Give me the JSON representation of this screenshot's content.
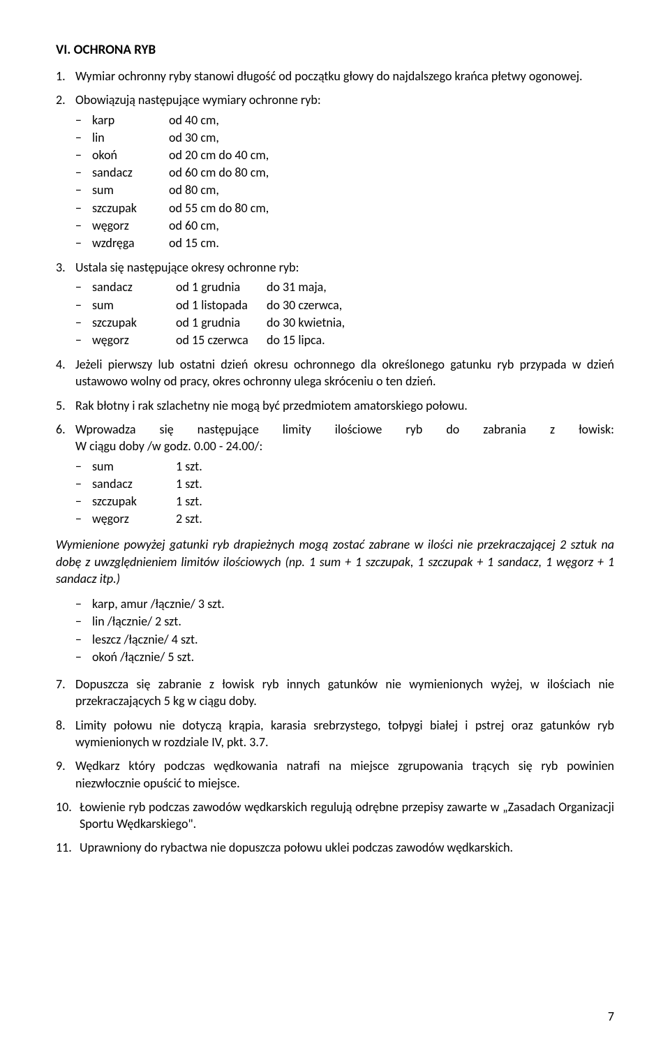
{
  "section_title": "VI. OCHRONA RYB",
  "items": {
    "1": {
      "num": "1.",
      "text": "Wymiar ochronny ryby stanowi długość od początku głowy do najdalszego krańca płetwy ogonowej."
    },
    "2": {
      "num": "2.",
      "text": "Obowiązują następujące wymiary ochronne ryb:",
      "label_width": 110,
      "sub": [
        {
          "label": "karp",
          "val": "od 40 cm,"
        },
        {
          "label": "lin",
          "val": "od 30 cm,"
        },
        {
          "label": "okoń",
          "val": "od 20 cm do 40 cm,"
        },
        {
          "label": "sandacz",
          "val": "od 60 cm do 80 cm,"
        },
        {
          "label": "sum",
          "val": "od 80 cm,"
        },
        {
          "label": "szczupak",
          "val": "od 55 cm do 80 cm,"
        },
        {
          "label": "węgorz",
          "val": "od 60 cm,"
        },
        {
          "label": "wzdręga",
          "val": "od 15 cm."
        }
      ]
    },
    "3": {
      "num": "3.",
      "text": "Ustala się następujące okresy ochronne ryb:",
      "label_width": 120,
      "col2_width": 130,
      "sub": [
        {
          "label": "sandacz",
          "val1": "od 1 grudnia",
          "val2": "do 31 maja,"
        },
        {
          "label": "sum",
          "val1": "od 1 listopada",
          "val2": "do 30 czerwca,"
        },
        {
          "label": "szczupak",
          "val1": "od 1 grudnia",
          "val2": "do 30 kwietnia,"
        },
        {
          "label": "węgorz",
          "val1": "od 15 czerwca",
          "val2": "do 15 lipca."
        }
      ]
    },
    "4": {
      "num": "4.",
      "text": "Jeżeli pierwszy lub ostatni dzień okresu ochronnego dla określonego gatunku ryb przypada w dzień ustawowo wolny od pracy, okres ochronny ulega skróceniu o ten dzień."
    },
    "5": {
      "num": "5.",
      "text": "Rak błotny i rak szlachetny nie mogą być przedmiotem amatorskiego połowu."
    },
    "6": {
      "num": "6.",
      "text_a": "Wprowadza",
      "text_b": "się",
      "text_c": "następujące",
      "text_d": "limity",
      "text_e": "ilościowe",
      "text_f": "ryb",
      "text_g": "do",
      "text_h": "zabrania",
      "text_i": "z",
      "text_j": "łowisk:",
      "text2": "W ciągu doby /w godz. 0.00 - 24.00/:",
      "label_width": 120,
      "sub": [
        {
          "label": "sum",
          "val": "1 szt."
        },
        {
          "label": "sandacz",
          "val": "1 szt."
        },
        {
          "label": "szczupak",
          "val": "1 szt."
        },
        {
          "label": "węgorz",
          "val": "2 szt."
        }
      ]
    },
    "italic_para": "Wymienione powyżej gatunki ryb drapieżnych mogą zostać zabrane w ilości nie przekraczającej 2 sztuk na dobę z uwzględnieniem limitów ilościowych (np. 1 sum + 1 szczupak, 1 szczupak + 1 sandacz, 1 węgorz + 1 sandacz itp.)",
    "plain_list": [
      "karp, amur /łącznie/ 3 szt.",
      "lin /łącznie/ 2 szt.",
      "leszcz /łącznie/ 4 szt.",
      "okoń /łącznie/ 5 szt."
    ],
    "7": {
      "num": "7.",
      "text": "Dopuszcza się zabranie z łowisk ryb innych gatunków nie wymienionych wyżej,  w ilościach nie przekraczających 5 kg w ciągu doby."
    },
    "8": {
      "num": "8.",
      "text": "Limity połowu nie dotyczą krąpia, karasia srebrzystego, tołpygi białej i pstrej oraz gatunków ryb wymienionych w rozdziale IV, pkt. 3.7."
    },
    "9": {
      "num": "9.",
      "text": "Wędkarz który podczas wędkowania natrafi na miejsce zgrupowania trących się ryb powinien niezwłocznie opuścić to miejsce."
    },
    "10": {
      "num": "10.",
      "text": "Łowienie ryb podczas zawodów wędkarskich regulują odrębne przepisy zawarte w „Zasadach Organizacji Sportu Wędkarskiego\"."
    },
    "11": {
      "num": "11.",
      "text": "Uprawniony do rybactwa nie dopuszcza połowu uklei podczas zawodów wędkarskich."
    }
  },
  "dash": "−",
  "page_number": "7"
}
